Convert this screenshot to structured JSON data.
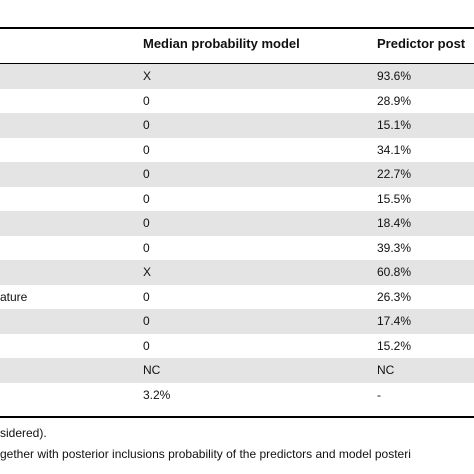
{
  "table": {
    "headers": [
      "Median probability model",
      "Predictor post"
    ],
    "rows": [
      {
        "label": "",
        "median": "X",
        "post": "93.6%"
      },
      {
        "label": "",
        "median": "0",
        "post": "28.9%"
      },
      {
        "label": "",
        "median": "0",
        "post": "15.1%"
      },
      {
        "label": "",
        "median": "0",
        "post": "34.1%"
      },
      {
        "label": "",
        "median": "0",
        "post": "22.7%"
      },
      {
        "label": "",
        "median": "0",
        "post": "15.5%"
      },
      {
        "label": "",
        "median": "0",
        "post": "18.4%"
      },
      {
        "label": "",
        "median": "0",
        "post": "39.3%"
      },
      {
        "label": "",
        "median": "X",
        "post": "60.8%"
      },
      {
        "label": "ature",
        "median": "0",
        "post": "26.3%"
      },
      {
        "label": "",
        "median": "0",
        "post": "17.4%"
      },
      {
        "label": "",
        "median": "0",
        "post": "15.2%"
      },
      {
        "label": "",
        "median": "NC",
        "post": "NC"
      },
      {
        "label": "",
        "median": "3.2%",
        "post": "-"
      }
    ]
  },
  "footnotes": [
    "sidered).",
    "gether with posterior inclusions probability of the predictors and model posteri"
  ]
}
